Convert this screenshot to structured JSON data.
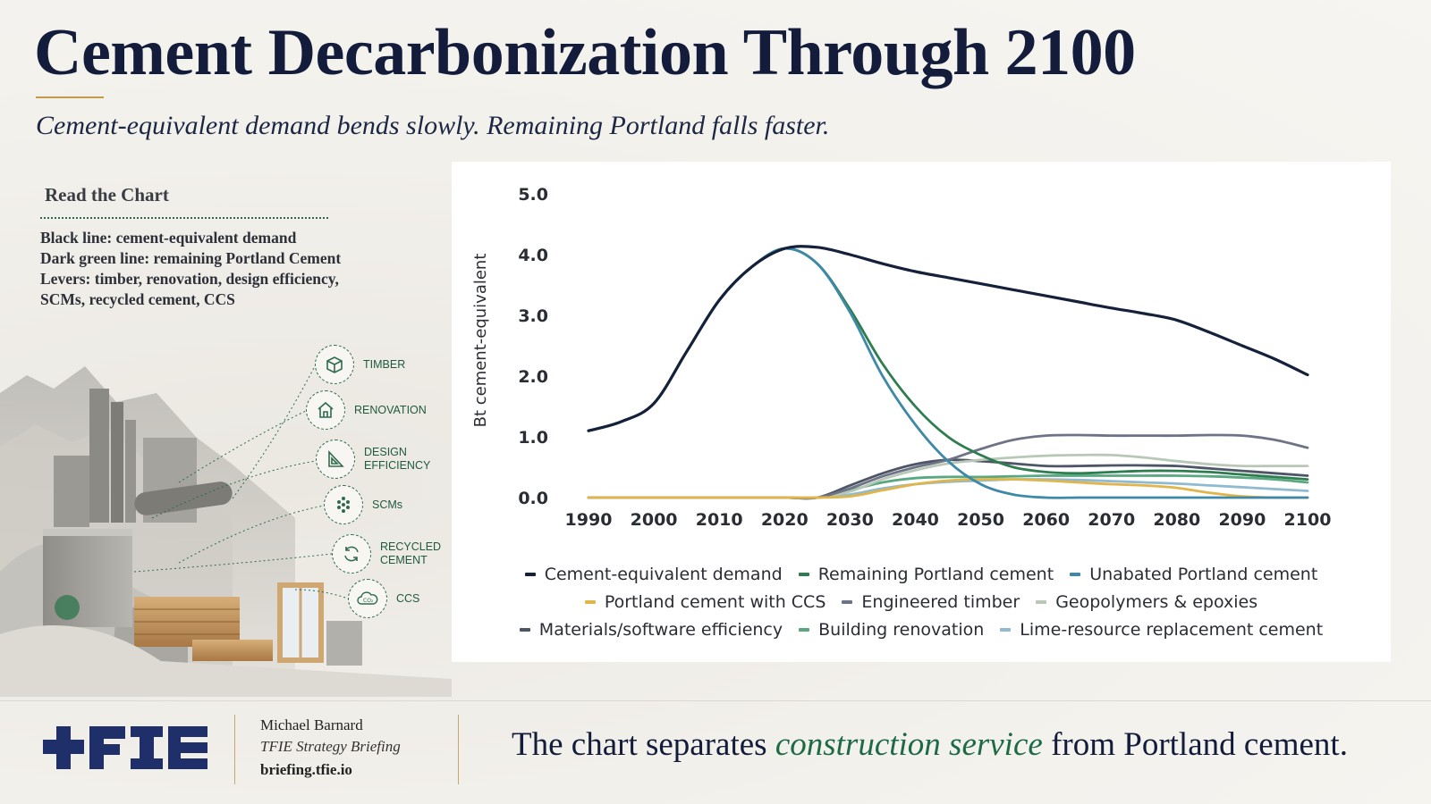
{
  "title": "Cement Decarbonization Through 2100",
  "subtitle": "Cement-equivalent demand bends slowly. Remaining Portland falls faster.",
  "read_panel": {
    "heading": "Read the Chart",
    "lines": [
      "Black line: cement-equivalent demand",
      "Dark green line: remaining Portland Cement",
      "Levers: timber, renovation, design efficiency,",
      "SCMs, recycled cement, CCS"
    ]
  },
  "levers": [
    {
      "label": "TIMBER",
      "icon": "timber-crate-icon"
    },
    {
      "label": "RENOVATION",
      "icon": "house-icon"
    },
    {
      "label": "DESIGN\nEFFICIENCY",
      "icon": "set-square-icon"
    },
    {
      "label": "SCMs",
      "icon": "dots-cluster-icon"
    },
    {
      "label": "RECYCLED\nCEMENT",
      "icon": "recycle-arrows-icon"
    },
    {
      "label": "CCS",
      "icon": "co2-cloud-icon"
    }
  ],
  "footer": {
    "author": "Michael Barnard",
    "role": "TFIE Strategy Briefing",
    "url": "briefing.tfie.io",
    "tagline_before": "The chart separates ",
    "tagline_em": "construction service",
    "tagline_after": " from Portland cement."
  },
  "chart_data": {
    "type": "line",
    "title": "",
    "xlabel": "",
    "ylabel": "Bt cement-equivalent",
    "xlim": [
      1990,
      2100
    ],
    "ylim": [
      0,
      5
    ],
    "x_ticks": [
      1990,
      2000,
      2010,
      2020,
      2030,
      2040,
      2050,
      2060,
      2070,
      2080,
      2090,
      2100
    ],
    "y_ticks": [
      "0.0",
      "1.0",
      "2.0",
      "3.0",
      "4.0",
      "5.0"
    ],
    "grid": false,
    "legend_position": "bottom",
    "x": [
      1990,
      1995,
      2000,
      2005,
      2010,
      2015,
      2020,
      2025,
      2030,
      2035,
      2040,
      2045,
      2050,
      2055,
      2060,
      2065,
      2070,
      2075,
      2080,
      2085,
      2090,
      2095,
      2100
    ],
    "series": [
      {
        "name": "Cement-equivalent demand",
        "color": "#15213a",
        "values": [
          1.1,
          1.25,
          1.55,
          2.4,
          3.25,
          3.8,
          4.1,
          4.12,
          4.0,
          3.85,
          3.72,
          3.62,
          3.52,
          3.42,
          3.32,
          3.22,
          3.12,
          3.03,
          2.92,
          2.72,
          2.5,
          2.28,
          2.02
        ]
      },
      {
        "name": "Remaining Portland cement",
        "color": "#2e7d4f",
        "values": [
          1.1,
          1.25,
          1.55,
          2.4,
          3.25,
          3.8,
          4.1,
          3.85,
          3.1,
          2.2,
          1.5,
          1.0,
          0.7,
          0.5,
          0.42,
          0.4,
          0.42,
          0.44,
          0.44,
          0.42,
          0.38,
          0.34,
          0.3
        ]
      },
      {
        "name": "Unabated Portland cement",
        "color": "#3f89a8",
        "values": [
          1.1,
          1.25,
          1.55,
          2.4,
          3.25,
          3.8,
          4.1,
          3.85,
          3.05,
          2.0,
          1.2,
          0.6,
          0.22,
          0.05,
          0.0,
          0.0,
          0.0,
          0.0,
          0.0,
          0.0,
          0.0,
          0.0,
          0.0
        ]
      },
      {
        "name": "Portland cement with CCS",
        "color": "#e1b54a",
        "values": [
          0,
          0,
          0,
          0,
          0,
          0,
          0,
          0,
          0.02,
          0.12,
          0.22,
          0.28,
          0.3,
          0.3,
          0.28,
          0.25,
          0.22,
          0.2,
          0.16,
          0.08,
          0.02,
          0.0,
          0.0
        ]
      },
      {
        "name": "Engineered timber",
        "color": "#6f7386",
        "values": [
          0,
          0,
          0,
          0,
          0,
          0,
          0,
          0,
          0.15,
          0.35,
          0.5,
          0.62,
          0.8,
          0.95,
          1.02,
          1.03,
          1.02,
          1.02,
          1.02,
          1.03,
          1.02,
          0.95,
          0.82
        ]
      },
      {
        "name": "Geopolymers & epoxies",
        "color": "#b9c8b6",
        "values": [
          0,
          0,
          0,
          0,
          0,
          0,
          0,
          0,
          0.1,
          0.3,
          0.45,
          0.56,
          0.62,
          0.66,
          0.69,
          0.7,
          0.7,
          0.66,
          0.6,
          0.55,
          0.52,
          0.52,
          0.52
        ]
      },
      {
        "name": "Materials/software efficiency",
        "color": "#4d5566",
        "values": [
          0,
          0,
          0,
          0,
          0,
          0,
          0,
          0,
          0.2,
          0.4,
          0.55,
          0.62,
          0.6,
          0.56,
          0.52,
          0.52,
          0.53,
          0.53,
          0.52,
          0.48,
          0.44,
          0.4,
          0.36
        ]
      },
      {
        "name": "Building renovation",
        "color": "#5aa882",
        "values": [
          0,
          0,
          0,
          0,
          0,
          0,
          0,
          0,
          0.12,
          0.25,
          0.32,
          0.34,
          0.34,
          0.35,
          0.36,
          0.36,
          0.36,
          0.36,
          0.36,
          0.35,
          0.33,
          0.3,
          0.25
        ]
      },
      {
        "name": "Lime-resource replacement cement",
        "color": "#8fbad0",
        "values": [
          0,
          0,
          0,
          0,
          0,
          0,
          0,
          0,
          0.05,
          0.15,
          0.22,
          0.26,
          0.28,
          0.3,
          0.3,
          0.29,
          0.27,
          0.25,
          0.23,
          0.2,
          0.17,
          0.14,
          0.11
        ]
      }
    ]
  }
}
